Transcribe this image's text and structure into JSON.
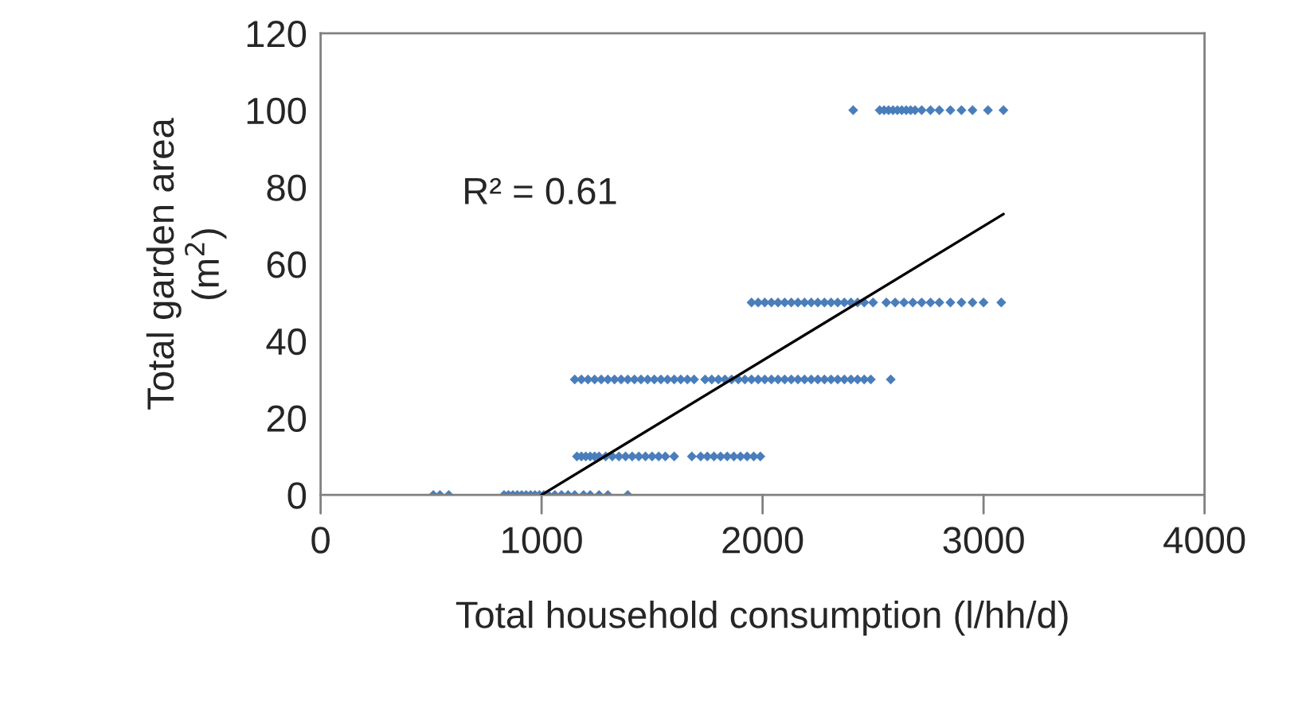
{
  "chart_data": {
    "type": "scatter",
    "xlabel": "Total household consumption (l/hh/d)",
    "ylabel": "Total garden area\n(m$^{2}$)",
    "xlim": [
      0,
      4000
    ],
    "xticks": [
      0,
      1000,
      2000,
      3000,
      4000
    ],
    "ylim": [
      0,
      120
    ],
    "yticks": [
      0,
      20,
      40,
      60,
      80,
      100,
      120
    ],
    "grid": false,
    "legend": false,
    "marker": "diamond",
    "annotations": [
      "R² = 0.61"
    ],
    "series": [
      {
        "color": "#4a7ebb",
        "x": [
          510,
          540,
          580,
          830,
          850,
          870,
          890,
          910,
          930,
          950,
          970,
          990,
          1010,
          1030,
          1060,
          1090,
          1120,
          1150,
          1190,
          1220,
          1260,
          1300,
          1390,
          1160,
          1180,
          1200,
          1220,
          1240,
          1260,
          1290,
          1320,
          1350,
          1380,
          1410,
          1440,
          1470,
          1500,
          1530,
          1560,
          1600,
          1680,
          1720,
          1750,
          1780,
          1810,
          1840,
          1870,
          1900,
          1930,
          1960,
          1990,
          1150,
          1180,
          1210,
          1240,
          1270,
          1300,
          1330,
          1360,
          1390,
          1420,
          1450,
          1480,
          1510,
          1540,
          1570,
          1600,
          1630,
          1660,
          1690,
          1740,
          1770,
          1800,
          1830,
          1860,
          1890,
          1920,
          1950,
          1980,
          2010,
          2040,
          2070,
          2100,
          2130,
          2160,
          2190,
          2220,
          2250,
          2280,
          2310,
          2340,
          2370,
          2400,
          2430,
          2460,
          2490,
          2580,
          1950,
          1980,
          2010,
          2040,
          2070,
          2100,
          2130,
          2160,
          2190,
          2220,
          2250,
          2280,
          2310,
          2340,
          2370,
          2400,
          2430,
          2460,
          2500,
          2560,
          2600,
          2640,
          2680,
          2720,
          2760,
          2800,
          2850,
          2900,
          2950,
          3000,
          3080,
          2410,
          2530,
          2550,
          2570,
          2590,
          2610,
          2630,
          2650,
          2670,
          2690,
          2720,
          2760,
          2800,
          2850,
          2900,
          2950,
          3020,
          3090
        ],
        "values": [
          0,
          0,
          0,
          0,
          0,
          0,
          0,
          0,
          0,
          0,
          0,
          0,
          0,
          0,
          0,
          0,
          0,
          0,
          0,
          0,
          0,
          0,
          0,
          10,
          10,
          10,
          10,
          10,
          10,
          10,
          10,
          10,
          10,
          10,
          10,
          10,
          10,
          10,
          10,
          10,
          10,
          10,
          10,
          10,
          10,
          10,
          10,
          10,
          10,
          10,
          10,
          30,
          30,
          30,
          30,
          30,
          30,
          30,
          30,
          30,
          30,
          30,
          30,
          30,
          30,
          30,
          30,
          30,
          30,
          30,
          30,
          30,
          30,
          30,
          30,
          30,
          30,
          30,
          30,
          30,
          30,
          30,
          30,
          30,
          30,
          30,
          30,
          30,
          30,
          30,
          30,
          30,
          30,
          30,
          30,
          30,
          30,
          50,
          50,
          50,
          50,
          50,
          50,
          50,
          50,
          50,
          50,
          50,
          50,
          50,
          50,
          50,
          50,
          50,
          50,
          50,
          50,
          50,
          50,
          50,
          50,
          50,
          50,
          50,
          50,
          50,
          50,
          50,
          100,
          100,
          100,
          100,
          100,
          100,
          100,
          100,
          100,
          100,
          100,
          100,
          100,
          100,
          100,
          100,
          100,
          100
        ]
      },
      {
        "type": "line",
        "color": "#000000",
        "x": [
          1000,
          3090
        ],
        "values": [
          0,
          73
        ],
        "marker": "none",
        "line_style": "solid"
      }
    ]
  }
}
